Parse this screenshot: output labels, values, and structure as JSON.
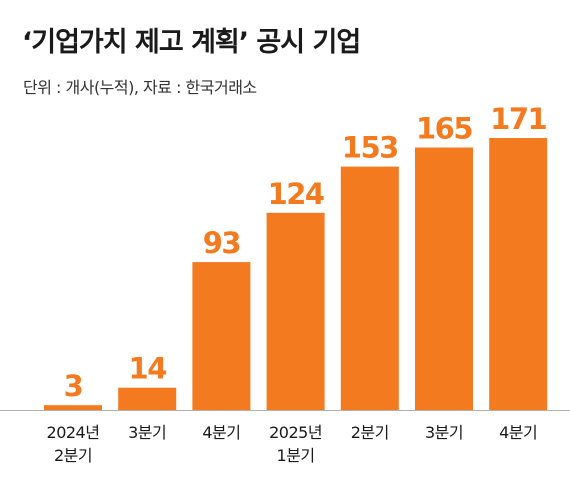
{
  "colors": {
    "bar": "#f47a20",
    "axis": "#b0b0b0",
    "text": "#1a1a1a"
  },
  "chart_data": {
    "type": "bar",
    "title": "‘기업가치 제고 계획’ 공시 기업",
    "subtitle": "단위 : 개사(누적), 자료 : 한국거래소",
    "categories": [
      [
        "2024년",
        "2분기"
      ],
      [
        "3분기"
      ],
      [
        "4분기"
      ],
      [
        "2025년",
        "1분기"
      ],
      [
        "2분기"
      ],
      [
        "3분기"
      ],
      [
        "4분기"
      ]
    ],
    "values": [
      3,
      14,
      93,
      124,
      153,
      165,
      171
    ],
    "ylim": [
      0,
      171
    ],
    "grid": false,
    "legend": "none"
  }
}
